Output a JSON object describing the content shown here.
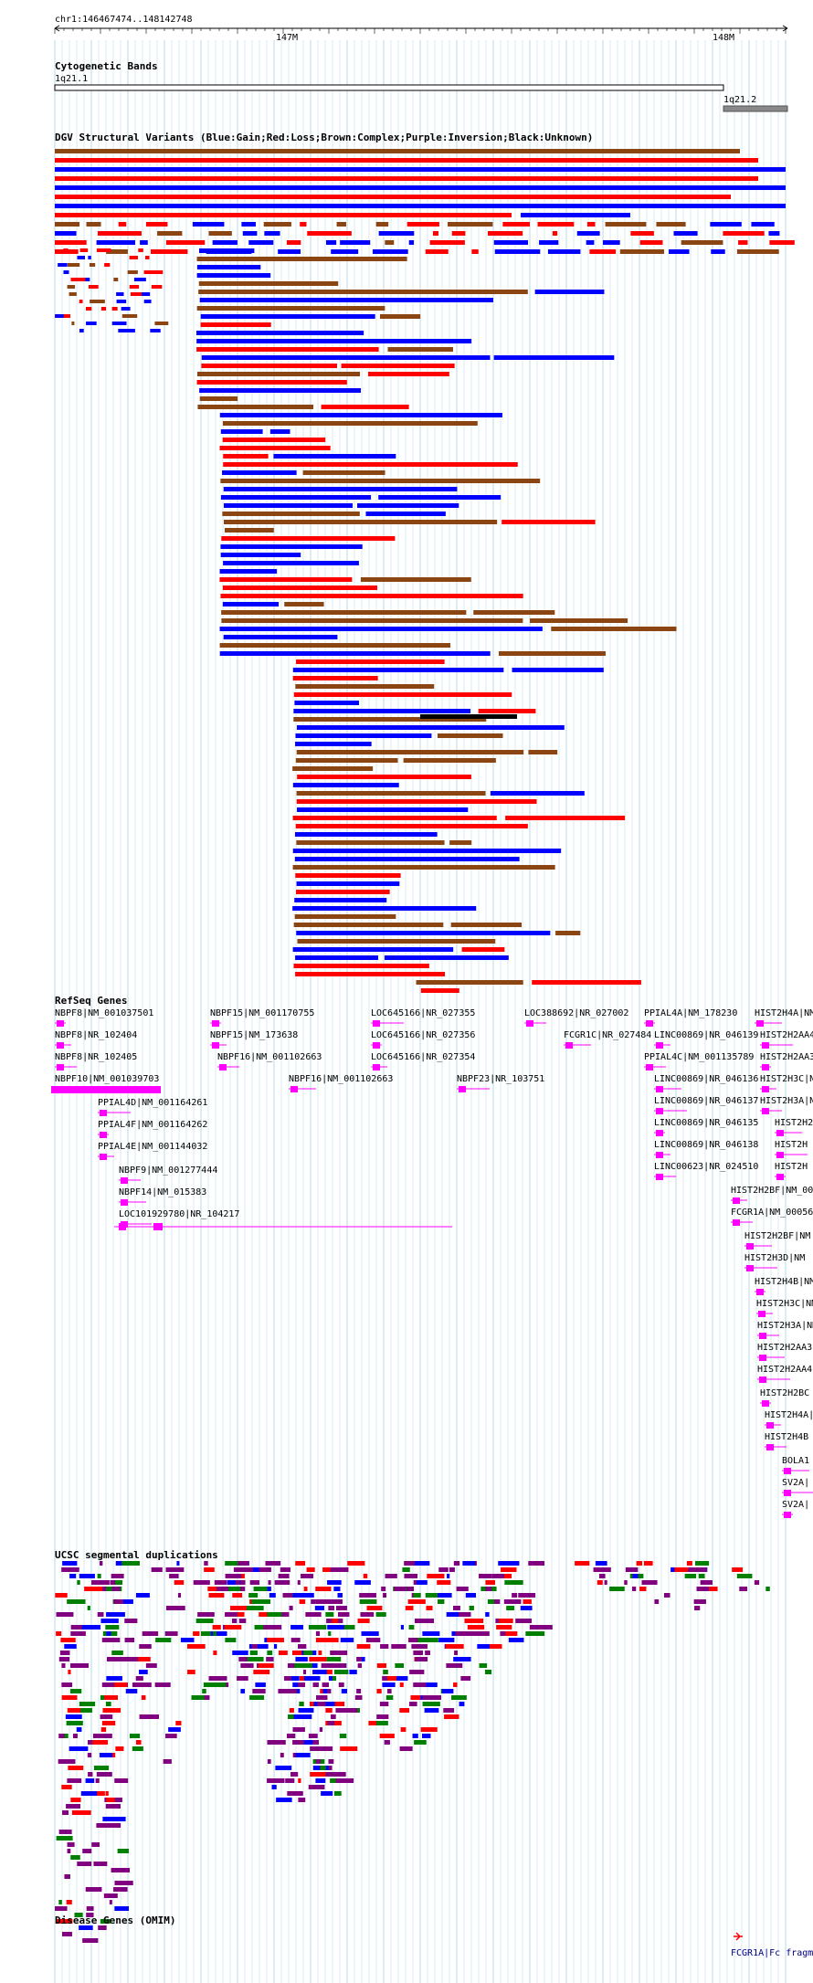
{
  "position_label": "chr1:146467474..148142748",
  "ruler": {
    "ticks": [
      "147M",
      "148M"
    ]
  },
  "colors": {
    "gain": "#0000ff",
    "loss": "#ff0000",
    "complex": "#8b4513",
    "inversion": "#800080",
    "unknown": "#000000",
    "gene": "#ff00ff",
    "segdup_green": "#008000",
    "omim": "#ff0000",
    "grid": "#a8d8e8"
  },
  "tracks": {
    "cytoband": {
      "title": "Cytogenetic Bands",
      "bands": [
        {
          "label": "1q21.1",
          "color": "#ffffff"
        },
        {
          "label": "1q21.2",
          "color": "#888888"
        }
      ]
    },
    "dgv": {
      "title": "DGV Structural Variants (Blue:Gain;Red:Loss;Brown:Complex;Purple:Inversion;Black:Unknown)"
    },
    "refseq": {
      "title": "RefSeq Genes",
      "genes": [
        "NBPF8|NM_001037501",
        "NBPF8|NR_102404",
        "NBPF8|NR_102405",
        "NBPF10|NM_001039703",
        "PPIAL4D|NM_001164261",
        "PPIAL4F|NM_001164262",
        "PPIAL4E|NM_001144032",
        "NBPF9|NM_001277444",
        "NBPF14|NM_015383",
        "LOC101929780|NR_104217",
        "NBPF15|NM_001170755",
        "NBPF15|NM_173638",
        "NBPF16|NM_001102663",
        "NBPF16|NM_001102663",
        "LOC645166|NR_027355",
        "LOC645166|NR_027356",
        "LOC645166|NR_027354",
        "LOC388692|NR_027002",
        "FCGR1C|NR_027484",
        "NBPF23|NR_103751",
        "PPIAL4A|NM_178230",
        "LINC00869|NR_046139",
        "PPIAL4C|NM_001135789",
        "LINC00869|NR_046136",
        "LINC00869|NR_046137",
        "LINC00869|NR_046135",
        "LINC00869|NR_046138",
        "LINC00623|NR_024510",
        "HIST2H4A|NM",
        "HIST2H2AA4|NM",
        "HIST2H2AA3|NM",
        "HIST2H3C|NM",
        "HIST2H3A|NM",
        "HIST2H2",
        "HIST2H",
        "HIST2H",
        "HIST2H2BF|NM_00",
        "FCGR1A|NM_00056",
        "HIST2H2BF|NM",
        "HIST2H3D|NM",
        "HIST2H4B|NM",
        "HIST2H3C|NM",
        "HIST2H3A|NM",
        "HIST2H2AA3",
        "HIST2H2AA4",
        "HIST2H2BC",
        "HIST2H4A|",
        "HIST2H4B",
        "BOLA1",
        "SV2A|",
        "SV2A|"
      ]
    },
    "segdups": {
      "title": "UCSC segmental duplications"
    },
    "omim": {
      "title": "Disease Genes (OMIM)",
      "items": [
        "FCGR1A|Fc fragm"
      ]
    }
  }
}
